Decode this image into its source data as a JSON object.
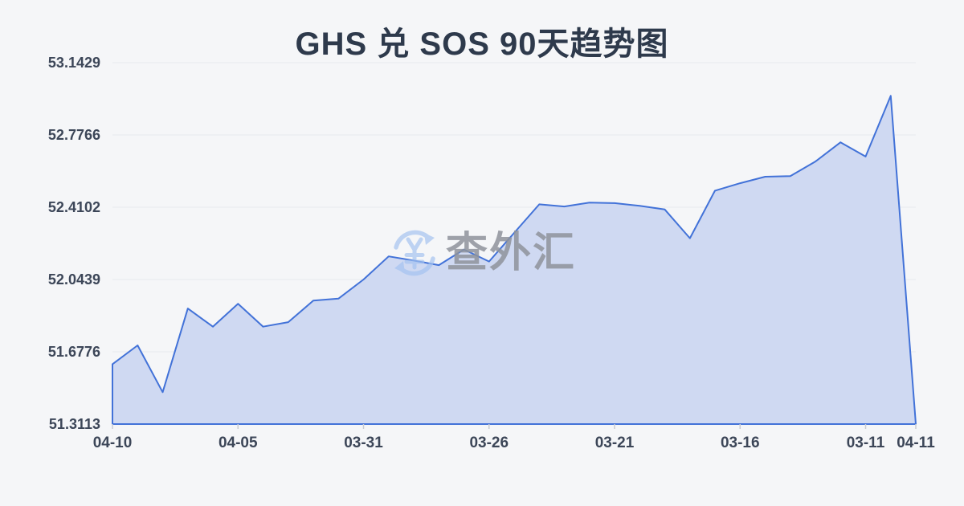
{
  "title": "GHS 兑 SOS 90天趋势图",
  "watermark": {
    "text": "查外汇",
    "icon": "yuan-refresh-icon",
    "icon_color": "#a3c2f0",
    "text_color": "#8f939c"
  },
  "colors": {
    "background": "#f5f6f8",
    "line": "#4272d8",
    "fill": "#cfd9f2",
    "grid": "#e8eaee",
    "tick": "#c9ccd3",
    "axis_label": "#3c4658",
    "title": "#2e3a4c"
  },
  "chart_data": {
    "type": "area",
    "title": "GHS 兑 SOS 90天趋势图",
    "xlabel": "",
    "ylabel": "",
    "ylim": [
      51.3113,
      53.1429
    ],
    "grid": true,
    "legend": false,
    "y_tick_labels": [
      "53.1429",
      "52.7766",
      "52.4102",
      "52.0439",
      "51.6776",
      "51.3113"
    ],
    "x_tick_labels": [
      "04-10",
      "04-05",
      "03-31",
      "03-26",
      "03-21",
      "03-16",
      "03-11",
      "04-11"
    ],
    "x_tick_indices": [
      0,
      5,
      10,
      15,
      20,
      25,
      30,
      32
    ],
    "values": [
      51.615,
      51.71,
      51.473,
      51.897,
      51.805,
      51.921,
      51.805,
      51.828,
      51.937,
      51.947,
      52.044,
      52.161,
      52.14,
      52.117,
      52.196,
      52.135,
      52.28,
      52.425,
      52.414,
      52.434,
      52.431,
      52.417,
      52.399,
      52.253,
      52.494,
      52.532,
      52.565,
      52.568,
      52.642,
      52.739,
      52.667,
      52.975,
      51.3113
    ]
  }
}
